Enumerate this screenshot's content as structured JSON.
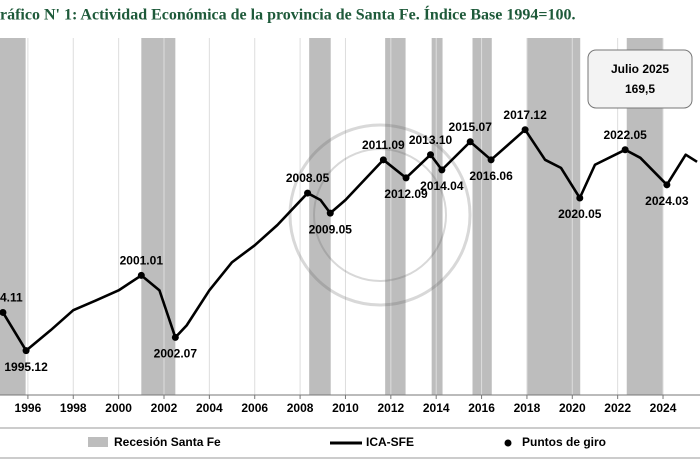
{
  "chart_data": {
    "type": "line",
    "title": "ráfico N' 1: Actividad Económica de la provincia de Santa Fe. Índice Base 1994=100.",
    "xlim": [
      1994.77,
      2025.63
    ],
    "ylim": [
      65,
      225
    ],
    "xticks": [
      1996,
      1998,
      2000,
      2002,
      2004,
      2006,
      2008,
      2010,
      2012,
      2014,
      2016,
      2018,
      2020,
      2022,
      2024
    ],
    "series": [
      {
        "name": "ICA-SFE",
        "color": "#000000",
        "x": [
          1994.8,
          1994.9,
          1995.92,
          1997,
          1998,
          1999,
          2000,
          2001.0,
          2001.8,
          2002.5,
          2003,
          2004,
          2005,
          2006,
          2007,
          2008.33,
          2008.9,
          2009.33,
          2010,
          2011.67,
          2012.67,
          2013.75,
          2014.25,
          2015.5,
          2016.42,
          2017.92,
          2018.8,
          2019.5,
          2020.33,
          2021,
          2022.33,
          2023,
          2024.17,
          2025,
          2025.5
        ],
        "values": [
          103,
          102,
          84.9,
          94,
          103,
          107.4,
          111.9,
          118.6,
          111.9,
          90.8,
          96.2,
          111.9,
          124.5,
          132.1,
          141.2,
          155.5,
          152.4,
          146.5,
          152.4,
          170.4,
          162.3,
          172.7,
          165.9,
          178.5,
          170.4,
          183.9,
          170.4,
          166.8,
          153.3,
          168.2,
          174.9,
          171.3,
          159.2,
          172.7,
          169.5
        ]
      }
    ],
    "recession_name": "Recesión Santa Fe",
    "recession_color": "#bdbdbd",
    "recessions": [
      [
        1994.77,
        1995.9
      ],
      [
        2001.0,
        2002.5
      ],
      [
        2008.4,
        2009.35
      ],
      [
        2011.75,
        2012.65
      ],
      [
        2013.8,
        2014.28
      ],
      [
        2015.6,
        2016.45
      ],
      [
        2018.0,
        2020.35
      ],
      [
        2022.4,
        2024.0
      ]
    ],
    "turning_points_name": "Puntos de giro",
    "turning_points": [
      {
        "label": "4.11",
        "x": 1994.9,
        "y": 102
      },
      {
        "label": "1995.12",
        "x": 1995.92,
        "y": 84.9
      },
      {
        "label": "2001.01",
        "x": 2001.0,
        "y": 118.6
      },
      {
        "label": "2002.07",
        "x": 2002.5,
        "y": 90.8
      },
      {
        "label": "2008.05",
        "x": 2008.33,
        "y": 155.5
      },
      {
        "label": "2009.05",
        "x": 2009.33,
        "y": 146.5
      },
      {
        "label": "2011.09",
        "x": 2011.67,
        "y": 170.4
      },
      {
        "label": "2012.09",
        "x": 2012.67,
        "y": 162.3
      },
      {
        "label": "2013.10",
        "x": 2013.75,
        "y": 172.7
      },
      {
        "label": "2014.04",
        "x": 2014.25,
        "y": 165.9
      },
      {
        "label": "2015.07",
        "x": 2015.5,
        "y": 178.5
      },
      {
        "label": "2016.06",
        "x": 2016.42,
        "y": 170.4
      },
      {
        "label": "2017.12",
        "x": 2017.92,
        "y": 183.9
      },
      {
        "label": "2020.05",
        "x": 2020.33,
        "y": 153.3
      },
      {
        "label": "2022.05",
        "x": 2022.33,
        "y": 174.9
      },
      {
        "label": "2024.03",
        "x": 2024.17,
        "y": 159.2
      }
    ],
    "annotation": {
      "label": "Julio 2025",
      "value": 169.5,
      "value_label": "169,5"
    }
  }
}
